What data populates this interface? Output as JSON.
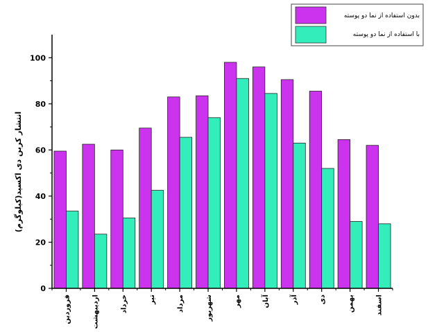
{
  "chart_data": {
    "type": "bar",
    "title": "",
    "xlabel": "",
    "ylabel": "انتشار کربن دی اکسید(کیلوگرم)",
    "ylim": [
      0,
      110
    ],
    "yticks": [
      0,
      20,
      40,
      60,
      80,
      100
    ],
    "grid": false,
    "legend_position": "top-right",
    "categories": [
      "فروردین",
      "اردیبهشت",
      "خرداد",
      "تیر",
      "مرداد",
      "شهریور",
      "مهر",
      "آبان",
      "آذر",
      "دی",
      "بهمن",
      "اسفند"
    ],
    "series": [
      {
        "name": "بدون استفاده از نما دو پوسته",
        "color": "#cc33ee",
        "values": [
          59.5,
          62.5,
          60,
          69.5,
          83,
          83.5,
          98,
          96,
          90.5,
          85.5,
          64.5,
          62
        ]
      },
      {
        "name": "با استفاده از نما دو پوسته",
        "color": "#33eebb",
        "values": [
          33.5,
          23.5,
          30.5,
          42.5,
          65.5,
          74,
          91,
          84.5,
          63,
          52,
          29,
          28
        ]
      }
    ]
  }
}
